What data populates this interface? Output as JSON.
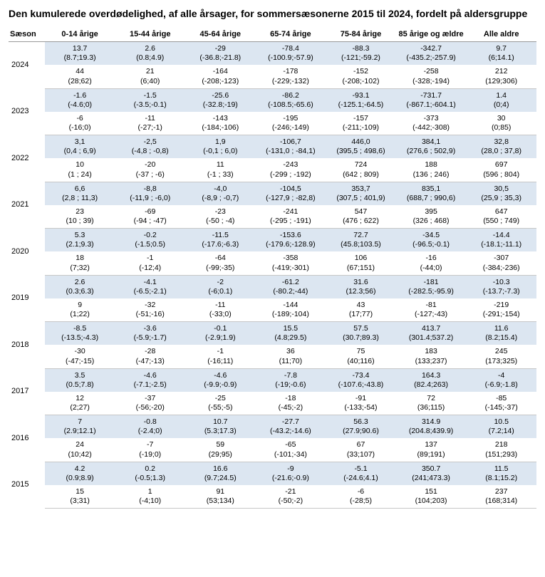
{
  "title": "Den kumulerede overdødelighed, af alle årsager, for sommersæsonerne 2015 til 2024, fordelt på aldersgruppe",
  "columns": [
    "Sæson",
    "0-14 årige",
    "15-44 årige",
    "45-64 årige",
    "65-74 årige",
    "75-84 årige",
    "85 årige og ældre",
    "Alle aldre"
  ],
  "seasons": [
    {
      "year": "2024",
      "row1": [
        "13.7\n(8.7;19.3)",
        "2.6\n(0.8;4.9)",
        "-29\n(-36.8;-21.8)",
        "-78.4\n(-100.9;-57.9)",
        "-88.3\n(-121;-59.2)",
        "-342.7\n(-435.2;-257.9)",
        "9.7\n(6;14.1)"
      ],
      "row2": [
        "44\n(28;62)",
        "21\n(6;40)",
        "-164\n(-208;-123)",
        "-178\n(-229;-132)",
        "-152\n(-208;-102)",
        "-258\n(-328;-194)",
        "212\n(129;306)"
      ]
    },
    {
      "year": "2023",
      "row1": [
        "-1.6\n(-4.6;0)",
        "-1.5\n(-3.5;-0.1)",
        "-25.6\n(-32.8;-19)",
        "-86.2\n(-108.5;-65.6)",
        "-93.1\n(-125.1;-64.5)",
        "-731.7\n(-867.1;-604.1)",
        "1.4\n(0;4)"
      ],
      "row2": [
        "-6\n(-16;0)",
        "-11\n(-27;-1)",
        "-143\n(-184;-106)",
        "-195\n(-246;-149)",
        "-157\n(-211;-109)",
        "-373\n(-442;-308)",
        "30\n(0;85)"
      ]
    },
    {
      "year": "2022",
      "row1": [
        "3,1\n(0,4 ; 6,9)",
        "-2,5\n(-4,8 ; -0,8)",
        "1,9\n(-0,1 ; 6,0)",
        "-106,7\n(-131,0 ; -84,1)",
        "446,0\n(395,5 ; 498,6)",
        "384,1\n(276,6 ; 502,9)",
        "32,8\n(28,0 ; 37,8)"
      ],
      "row2": [
        "10\n(1 ; 24)",
        "-20\n(-37 ; -6)",
        "11\n(-1 ; 33)",
        "-243\n(-299 ; -192)",
        "724\n(642 ; 809)",
        "188\n(136 ; 246)",
        "697\n(596 ; 804)"
      ]
    },
    {
      "year": "2021",
      "row1": [
        "6,6\n(2,8 ; 11,3)",
        "-8,8\n(-11,9 ; -6,0)",
        "-4,0\n(-8,9 ; -0,7)",
        "-104,5\n(-127,9 ; -82,8)",
        "353,7\n(307,5 ; 401,9)",
        "835,1\n(688,7 ; 990,6)",
        "30,5\n(25,9 ; 35,3)"
      ],
      "row2": [
        "23\n(10 ; 39)",
        "-69\n(-94 ; -47)",
        "-23\n(-50 ; -4)",
        "-241\n(-295 ; -191)",
        "547\n(476 ; 622)",
        "395\n(326 ; 468)",
        "647\n(550 ; 749)"
      ]
    },
    {
      "year": "2020",
      "row1": [
        "5.3\n(2.1;9.3)",
        "-0.2\n(-1.5;0.5)",
        "-11.5\n(-17.6;-6.3)",
        "-153.6\n(-179.6;-128.9)",
        "72.7\n(45.8;103.5)",
        "-34.5\n(-96.5;-0.1)",
        "-14.4\n(-18.1;-11.1)"
      ],
      "row2": [
        "18\n(7;32)",
        "-1\n(-12;4)",
        "-64\n(-99;-35)",
        "-358\n(-419;-301)",
        "106\n(67;151)",
        "-16\n(-44;0)",
        "-307\n(-384;-236)"
      ]
    },
    {
      "year": "2019",
      "row1": [
        "2.6\n(0.3;6.3)",
        "-4.1\n(-6.5;-2.1)",
        "-2\n(-6;0.1)",
        "-61.2\n(-80.2;-44)",
        "31.6\n(12.3;56)",
        "-181\n(-282.5;-95.9)",
        "-10.3\n(-13.7;-7.3)"
      ],
      "row2": [
        "9\n(1;22)",
        "-32\n(-51;-16)",
        "-11\n(-33;0)",
        "-144\n(-189;-104)",
        "43\n(17;77)",
        "-81\n(-127;-43)",
        "-219\n(-291;-154)"
      ]
    },
    {
      "year": "2018",
      "row1": [
        "-8.5\n(-13.5;-4.3)",
        "-3.6\n(-5.9;-1.7)",
        "-0.1\n(-2.9;1.9)",
        "15.5\n(4.8;29.5)",
        "57.5\n(30.7;89.3)",
        "413.7\n(301.4;537.2)",
        "11.6\n(8.2;15.4)"
      ],
      "row2": [
        "-30\n(-47;-15)",
        "-28\n(-47;-13)",
        "-1\n(-16;11)",
        "36\n(11;70)",
        "75\n(40;116)",
        "183\n(133;237)",
        "245\n(173;325)"
      ]
    },
    {
      "year": "2017",
      "row1": [
        "3.5\n(0.5;7.8)",
        "-4.6\n(-7.1;-2.5)",
        "-4.6\n(-9.9;-0.9)",
        "-7.8\n(-19;-0.6)",
        "-73.4\n(-107.6;-43.8)",
        "164.3\n(82.4;263)",
        "-4\n(-6.9;-1.8)"
      ],
      "row2": [
        "12\n(2;27)",
        "-37\n(-56;-20)",
        "-25\n(-55;-5)",
        "-18\n(-45;-2)",
        "-91\n(-133;-54)",
        "72\n(36;115)",
        "-85\n(-145;-37)"
      ]
    },
    {
      "year": "2016",
      "row1": [
        "7\n(2.9;12.1)",
        "-0.8\n(-2.4;0)",
        "10.7\n(5.3;17.3)",
        "-27.7\n(-43.2;-14.6)",
        "56.3\n(27.9;90.6)",
        "314.9\n(204.8;439.9)",
        "10.5\n(7.2;14)"
      ],
      "row2": [
        "24\n(10;42)",
        "-7\n(-19;0)",
        "59\n(29;95)",
        "-65\n(-101;-34)",
        "67\n(33;107)",
        "137\n(89;191)",
        "218\n(151;293)"
      ]
    },
    {
      "year": "2015",
      "row1": [
        "4.2\n(0.9;8.9)",
        "0.2\n(-0.5;1.3)",
        "16.6\n(9.7;24.5)",
        "-9\n(-21.6;-0.9)",
        "-5.1\n(-24.6;4.1)",
        "350.7\n(241;473.3)",
        "11.5\n(8.1;15.2)"
      ],
      "row2": [
        "15\n(3;31)",
        "1\n(-4;10)",
        "91\n(53;134)",
        "-21\n(-50;-2)",
        "-6\n(-28;5)",
        "151\n(104;203)",
        "237\n(168;314)"
      ]
    }
  ]
}
